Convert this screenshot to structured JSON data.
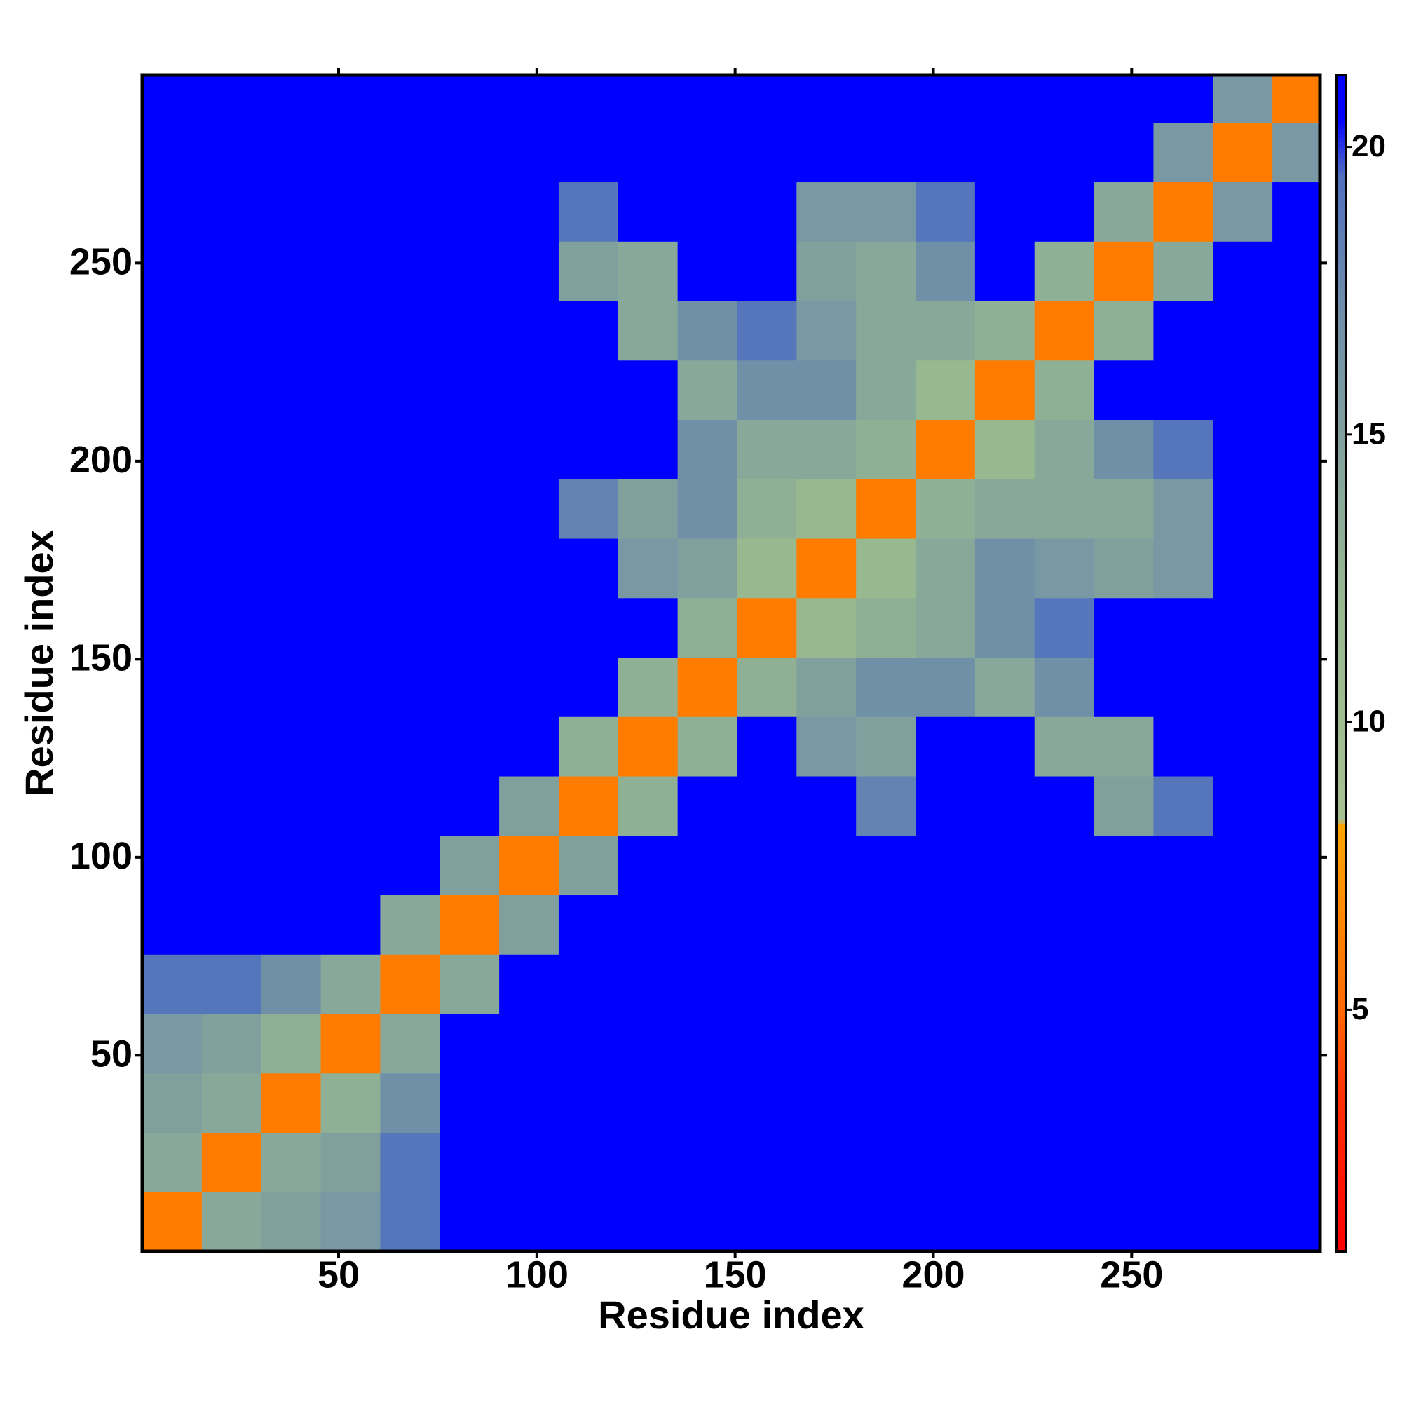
{
  "chart_data": {
    "type": "heatmap",
    "xlabel": "Residue index",
    "ylabel": "Residue index",
    "xlim": [
      0.5,
      297.5
    ],
    "ylim": [
      0.5,
      297.5
    ],
    "xticks": [
      50,
      100,
      150,
      200,
      250
    ],
    "yticks": [
      50,
      100,
      150,
      200,
      250
    ],
    "xbins": [
      0.5,
      15.5,
      30.5,
      45.5,
      60.5,
      75.5,
      90.5,
      105.5,
      120.5,
      135.5,
      150.5,
      165.5,
      180.5,
      195.5,
      210.5,
      225.5,
      240.5,
      255.5,
      270.5,
      285.5,
      297.5
    ],
    "ybins": [
      0.5,
      15.5,
      30.5,
      45.5,
      60.5,
      75.5,
      90.5,
      105.5,
      120.5,
      135.5,
      150.5,
      165.5,
      180.5,
      195.5,
      210.5,
      225.5,
      240.5,
      255.5,
      270.5,
      285.5,
      297.5
    ],
    "z": [
      [
        6,
        14,
        15,
        16,
        19,
        21,
        21,
        21,
        21,
        21,
        21,
        21,
        21,
        21,
        21,
        21,
        21,
        21,
        21,
        21
      ],
      [
        14,
        6,
        14,
        15,
        19,
        21,
        21,
        21,
        21,
        21,
        21,
        21,
        21,
        21,
        21,
        21,
        21,
        21,
        21,
        21
      ],
      [
        15,
        14,
        6,
        13,
        17,
        21,
        21,
        21,
        21,
        21,
        21,
        21,
        21,
        21,
        21,
        21,
        21,
        21,
        21,
        21
      ],
      [
        16,
        15,
        13,
        6,
        14,
        21,
        21,
        21,
        21,
        21,
        21,
        21,
        21,
        21,
        21,
        21,
        21,
        21,
        21,
        21
      ],
      [
        19,
        19,
        17,
        14,
        6,
        14,
        21,
        21,
        21,
        21,
        21,
        21,
        21,
        21,
        21,
        21,
        21,
        21,
        21,
        21
      ],
      [
        21,
        21,
        21,
        21,
        14,
        6,
        15,
        21,
        21,
        21,
        21,
        21,
        21,
        21,
        21,
        21,
        21,
        21,
        21,
        21
      ],
      [
        21,
        21,
        21,
        21,
        21,
        15,
        6,
        15,
        21,
        21,
        21,
        21,
        21,
        21,
        21,
        21,
        21,
        21,
        21,
        21
      ],
      [
        21,
        21,
        21,
        21,
        21,
        21,
        15,
        6,
        13,
        21,
        21,
        21,
        18,
        21,
        21,
        21,
        15,
        19,
        21,
        21
      ],
      [
        21,
        21,
        21,
        21,
        21,
        21,
        21,
        13,
        6,
        13,
        21,
        16,
        15,
        21,
        21,
        14,
        14,
        21,
        21,
        21
      ],
      [
        21,
        21,
        21,
        21,
        21,
        21,
        21,
        21,
        13,
        6,
        13,
        15,
        17,
        17,
        14,
        17,
        21,
        21,
        21,
        21
      ],
      [
        21,
        21,
        21,
        21,
        21,
        21,
        21,
        21,
        21,
        13,
        6,
        12,
        13,
        14,
        17,
        19,
        21,
        21,
        21,
        21
      ],
      [
        21,
        21,
        21,
        21,
        21,
        21,
        21,
        21,
        16,
        15,
        12,
        6,
        12,
        14,
        17,
        16,
        15,
        16,
        21,
        21
      ],
      [
        21,
        21,
        21,
        21,
        21,
        21,
        21,
        18,
        15,
        17,
        13,
        12,
        6,
        13,
        14,
        14,
        14,
        16,
        21,
        21
      ],
      [
        21,
        21,
        21,
        21,
        21,
        21,
        21,
        21,
        21,
        17,
        14,
        14,
        13,
        6,
        12,
        14,
        17,
        19,
        21,
        21
      ],
      [
        21,
        21,
        21,
        21,
        21,
        21,
        21,
        21,
        21,
        14,
        17,
        17,
        14,
        12,
        6,
        13,
        21,
        21,
        21,
        21
      ],
      [
        21,
        21,
        21,
        21,
        21,
        21,
        21,
        21,
        14,
        17,
        19,
        16,
        14,
        14,
        13,
        6,
        13,
        21,
        21,
        21
      ],
      [
        21,
        21,
        21,
        21,
        21,
        21,
        21,
        15,
        14,
        21,
        21,
        15,
        14,
        17,
        21,
        13,
        6,
        14,
        21,
        21
      ],
      [
        21,
        21,
        21,
        21,
        21,
        21,
        21,
        19,
        21,
        21,
        21,
        16,
        16,
        19,
        21,
        21,
        14,
        6,
        16,
        21
      ],
      [
        21,
        21,
        21,
        21,
        21,
        21,
        21,
        21,
        21,
        21,
        21,
        21,
        21,
        21,
        21,
        21,
        21,
        16,
        6,
        16
      ],
      [
        21,
        21,
        21,
        21,
        21,
        21,
        21,
        21,
        21,
        21,
        21,
        21,
        21,
        21,
        21,
        21,
        21,
        21,
        16,
        6
      ]
    ],
    "colorbar": {
      "lim": [
        0.8,
        21.25
      ],
      "ticks": [
        5,
        10,
        15,
        20
      ]
    },
    "colorscale": [
      [
        0.8,
        "#ff0000"
      ],
      [
        3.5,
        "#ff3000"
      ],
      [
        5,
        "#ff6a00"
      ],
      [
        8.2,
        "#ffa500"
      ],
      [
        8.3,
        "#a8c090"
      ],
      [
        12,
        "#98b890"
      ],
      [
        17,
        "#7090a8"
      ],
      [
        19.5,
        "#5070c0"
      ],
      [
        20.5,
        "#0000ff"
      ],
      [
        21.25,
        "#0000ff"
      ]
    ]
  }
}
